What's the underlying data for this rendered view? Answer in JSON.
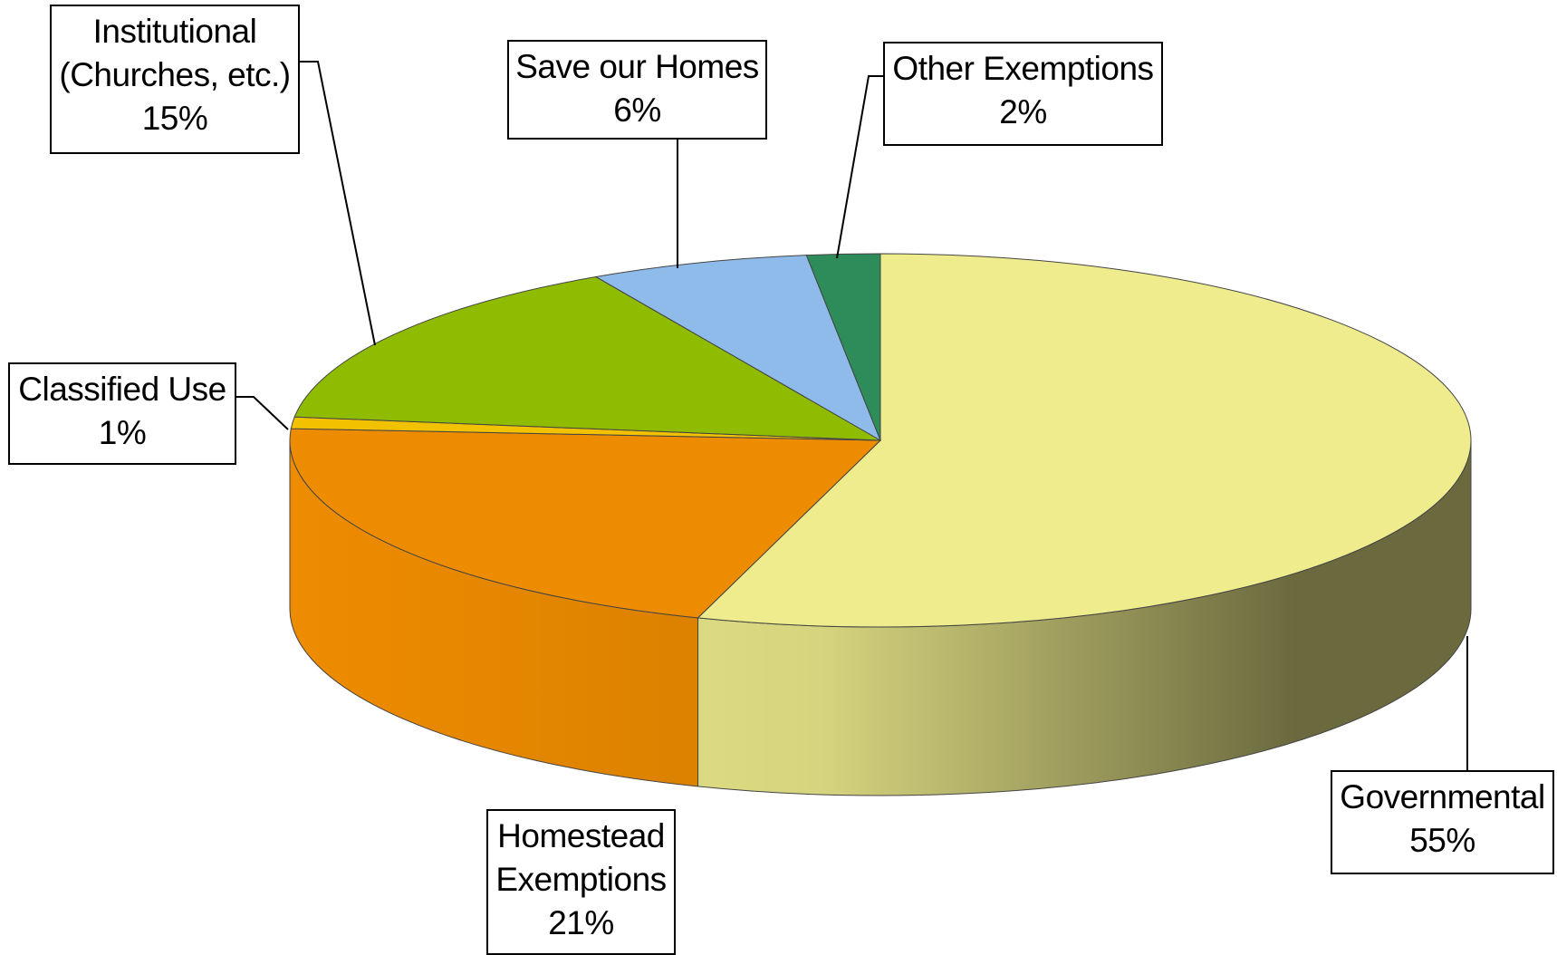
{
  "chart_data": {
    "type": "pie3d",
    "categories": [
      "Governmental",
      "Homestead Exemptions",
      "Classified Use",
      "Institutional (Churches, etc.)",
      "Save our Homes",
      "Other Exemptions"
    ],
    "values": [
      55,
      21,
      1,
      15,
      6,
      2
    ],
    "value_labels": [
      "55%",
      "21%",
      "1%",
      "15%",
      "6%",
      "2%"
    ],
    "colors": [
      "#eeec8c",
      "#ee8c00",
      "#f2c200",
      "#8fbc00",
      "#8fbbea",
      "#2e8b5a"
    ]
  }
}
